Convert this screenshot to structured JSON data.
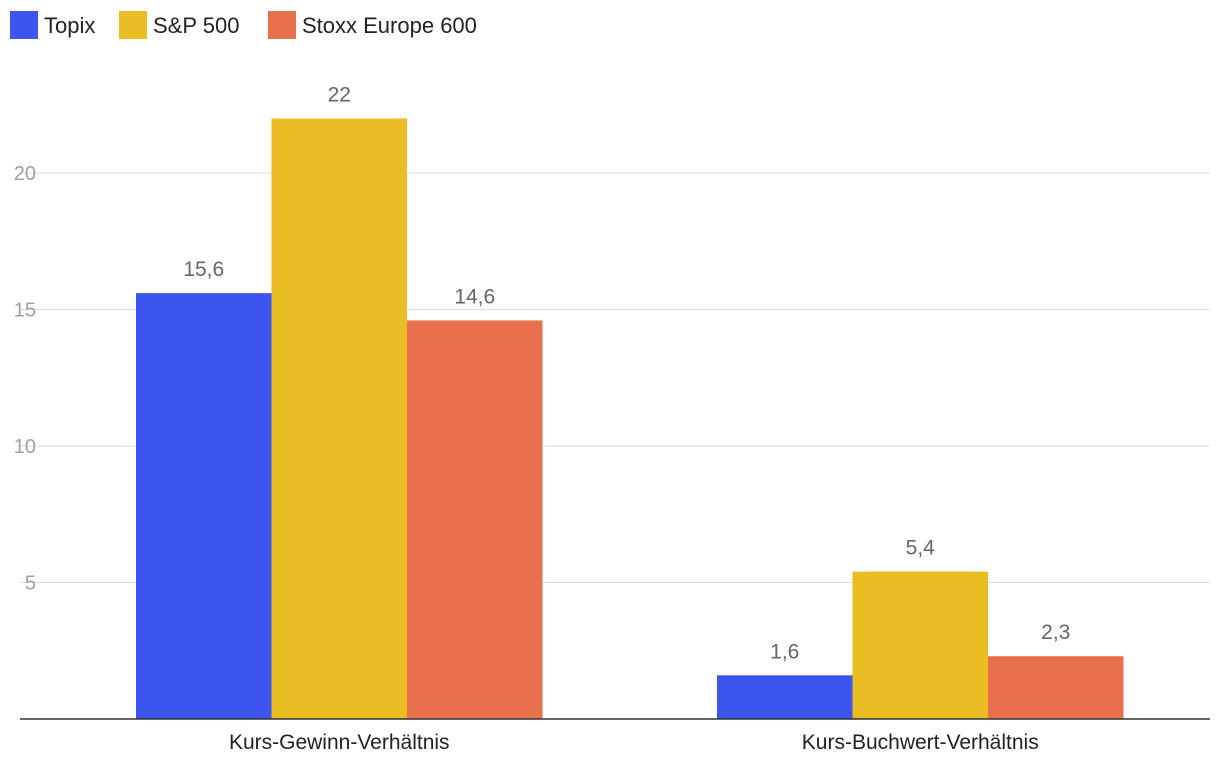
{
  "chart_data": {
    "type": "bar",
    "categories": [
      "Kurs-Gewinn-Verhältnis",
      "Kurs-Buchwert-Verhältnis"
    ],
    "series": [
      {
        "name": "Topix",
        "color": "#3b55ee",
        "values": [
          15.6,
          1.6
        ],
        "labels": [
          "15,6",
          "1,6"
        ]
      },
      {
        "name": "S&P 500",
        "color": "#ebbd24",
        "values": [
          22,
          5.4
        ],
        "labels": [
          "22",
          "5,4"
        ]
      },
      {
        "name": "Stoxx Europe 600",
        "color": "#e8704d",
        "values": [
          14.6,
          2.3
        ],
        "labels": [
          "14,6",
          "2,3"
        ]
      }
    ],
    "yticks": [
      5,
      10,
      15,
      20
    ],
    "ylim": [
      0,
      24
    ],
    "grid": true,
    "legend": "top-left",
    "title": "",
    "xlabel": "",
    "ylabel": ""
  }
}
